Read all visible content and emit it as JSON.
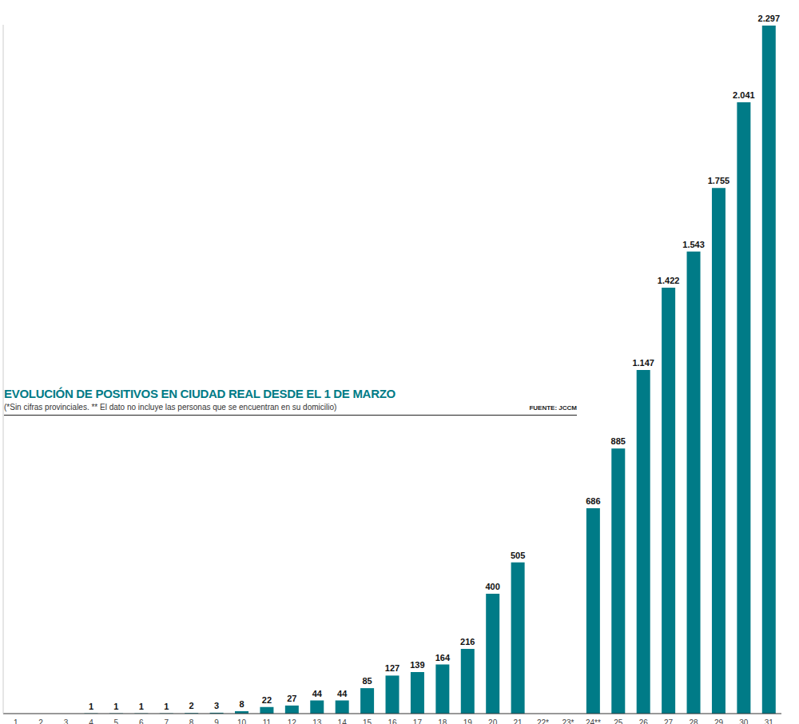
{
  "chart_data": {
    "type": "bar",
    "title": "EVOLUCIÓN DE POSITIVOS EN CIUDAD REAL DESDE EL 1 DE MARZO",
    "subtitle": "(*Sin cifras provinciales. ** El dato no incluye las personas que se encuentran en su domicilio)",
    "source": "FUENTE: JCCM",
    "categories": [
      "1",
      "2",
      "3",
      "4",
      "5",
      "6",
      "7",
      "8",
      "9",
      "10",
      "11",
      "12",
      "13",
      "14",
      "15",
      "16",
      "17",
      "18",
      "19",
      "20",
      "21",
      "22*",
      "23*",
      "24**",
      "25",
      "26",
      "27",
      "28",
      "29",
      "30",
      "31"
    ],
    "values": [
      null,
      null,
      null,
      1,
      1,
      1,
      1,
      2,
      3,
      8,
      22,
      27,
      44,
      44,
      85,
      127,
      139,
      164,
      216,
      400,
      505,
      null,
      null,
      686,
      885,
      1147,
      1422,
      1543,
      1755,
      2041,
      2297
    ],
    "value_labels": [
      null,
      null,
      null,
      "1",
      "1",
      "1",
      "1",
      "2",
      "3",
      "8",
      "22",
      "27",
      "44",
      "44",
      "85",
      "127",
      "139",
      "164",
      "216",
      "400",
      "505",
      null,
      null,
      "686",
      "885",
      "1.147",
      "1.422",
      "1.543",
      "1.755",
      "2.041",
      "2.297"
    ],
    "color": "#007b87",
    "ylim": [
      0,
      2300
    ],
    "data_labels": true,
    "tick_labels": "x",
    "grid": false
  }
}
